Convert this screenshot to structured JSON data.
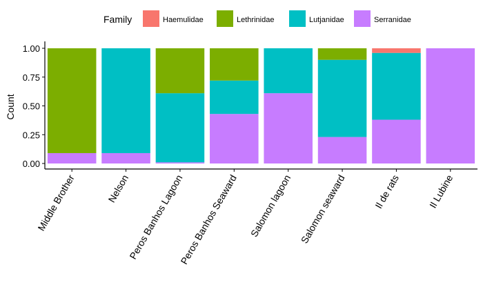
{
  "chart_data": {
    "type": "bar",
    "stacked": true,
    "title": "",
    "xlabel": "",
    "ylabel": "Count",
    "ylim": [
      0,
      1
    ],
    "yticks": [
      "0.00",
      "0.25",
      "0.50",
      "0.75",
      "1.00"
    ],
    "legend": {
      "title": "Family",
      "position": "top"
    },
    "categories": [
      "Middle Brother",
      "Nelson",
      "Peros Banhos Lagoon",
      "Peros Banhos Seaward",
      "Salomon lagoon",
      "Salomon seaward",
      "Il de rats",
      "Il Lubine"
    ],
    "series": [
      {
        "name": "Serranidae",
        "color": "#C77CFF",
        "values": [
          0.09,
          0.09,
          0.01,
          0.43,
          0.61,
          0.23,
          0.38,
          1.0
        ]
      },
      {
        "name": "Lutjanidae",
        "color": "#00BFC4",
        "values": [
          0.0,
          0.91,
          0.6,
          0.29,
          0.39,
          0.67,
          0.58,
          0.0
        ]
      },
      {
        "name": "Lethrinidae",
        "color": "#7CAE00",
        "values": [
          0.91,
          0.0,
          0.39,
          0.28,
          0.0,
          0.1,
          0.0,
          0.0
        ]
      },
      {
        "name": "Haemulidae",
        "color": "#F8766D",
        "values": [
          0.0,
          0.0,
          0.0,
          0.0,
          0.0,
          0.0,
          0.04,
          0.0
        ]
      }
    ],
    "legend_order": [
      "Haemulidae",
      "Lethrinidae",
      "Lutjanidae",
      "Serranidae"
    ],
    "grid": false
  }
}
